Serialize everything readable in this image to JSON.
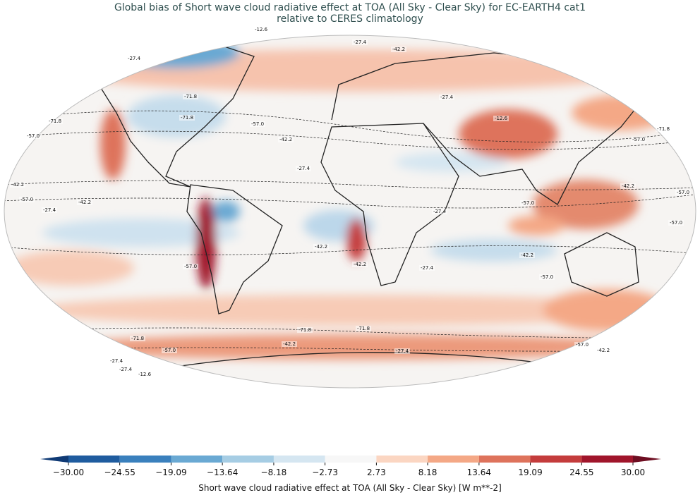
{
  "title": [
    "Global bias of Short wave cloud radiative effect at TOA (All Sky - Clear Sky) for EC-EARTH4 cat1",
    "relative to CERES climatology"
  ],
  "contour_levels": [
    "-71.8",
    "-57.0",
    "-42.2",
    "-27.4",
    "-12.6"
  ],
  "colorbar": {
    "label": "Short wave cloud radiative effect at TOA (All Sky - Clear Sky) [W m**-2]",
    "ticks": [
      {
        "value": -30,
        "label": "−30.00"
      },
      {
        "value": -24.55,
        "label": "−24.55"
      },
      {
        "value": -19.09,
        "label": "−19.09"
      },
      {
        "value": -13.64,
        "label": "−13.64"
      },
      {
        "value": -8.18,
        "label": "−8.18"
      },
      {
        "value": -2.73,
        "label": "−2.73"
      },
      {
        "value": 2.73,
        "label": "2.73"
      },
      {
        "value": 8.18,
        "label": "8.18"
      },
      {
        "value": 13.64,
        "label": "13.64"
      },
      {
        "value": 19.09,
        "label": "19.09"
      },
      {
        "value": 24.55,
        "label": "24.55"
      },
      {
        "value": 30,
        "label": "30.00"
      }
    ],
    "colors": [
      "#1f5c9f",
      "#3a80bd",
      "#6aa9d3",
      "#a6cde4",
      "#d5e6f1",
      "#f7f7f7",
      "#fbd6c2",
      "#f4a886",
      "#de735c",
      "#c43c3c",
      "#a0152b"
    ],
    "under_color": "#0f3a75",
    "over_color": "#6e0e22"
  }
}
